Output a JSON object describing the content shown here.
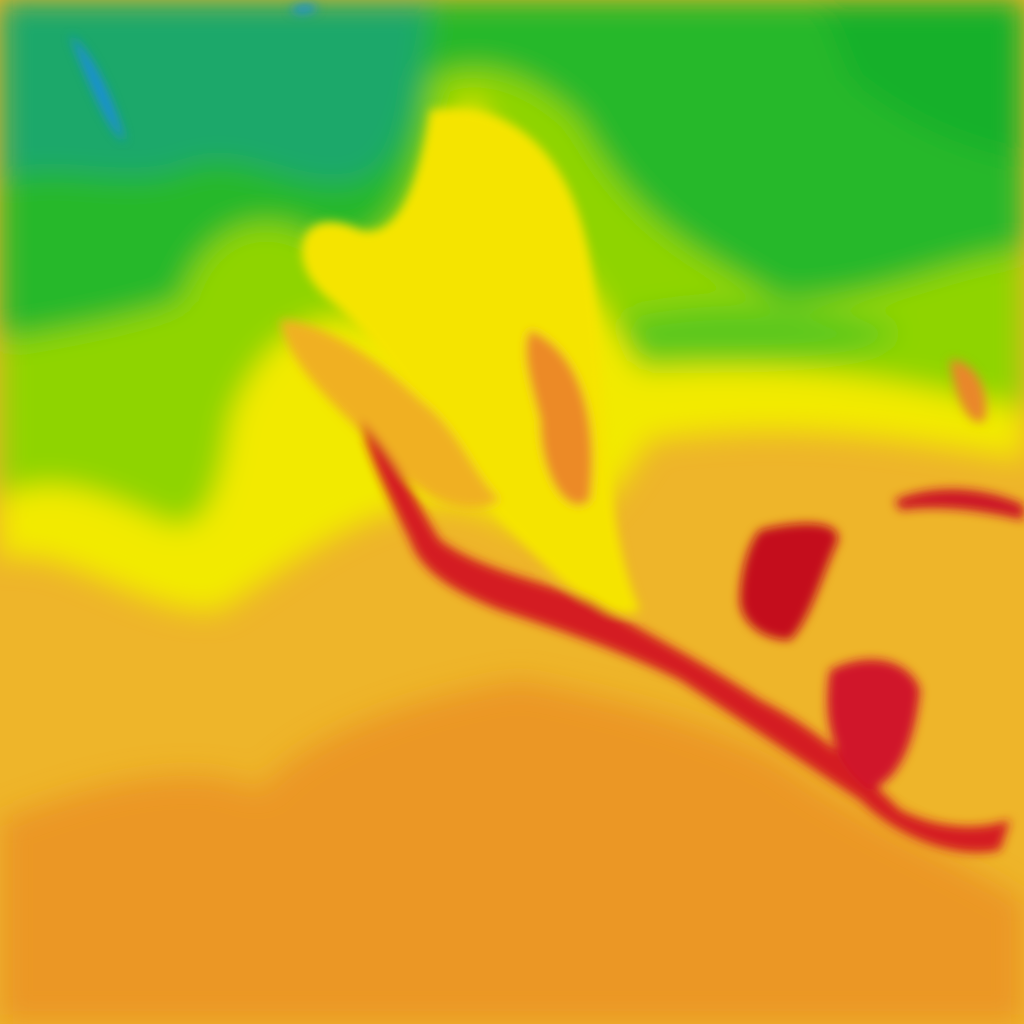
{
  "map": {
    "type": "temperature-heatmap-tile",
    "palette": {
      "cold_blue": "#1a8fd6",
      "teal": "#1aa86a",
      "green": "#28b82a",
      "lime": "#8fd400",
      "yellow": "#f2ea00",
      "light_orange": "#eeb52a",
      "orange": "#e98a25",
      "red": "#dc2222",
      "dark_red": "#b8001e"
    }
  }
}
